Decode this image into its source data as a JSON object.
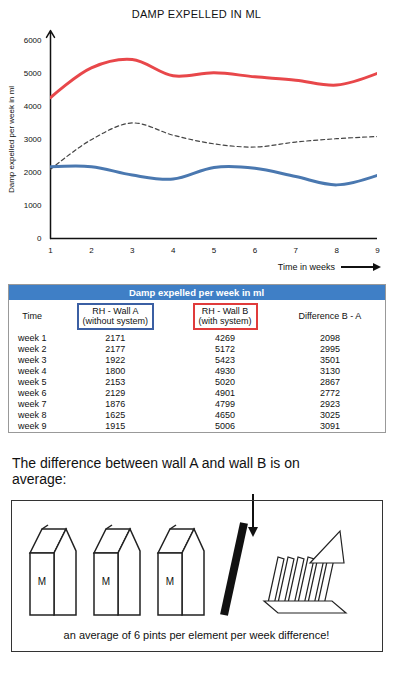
{
  "chart_data": {
    "type": "line",
    "title": "DAMP EXPELLED IN ML",
    "x_label": "Time in weeks",
    "y_label": "Damp expelled per week in ml",
    "x": [
      1,
      2,
      3,
      4,
      5,
      6,
      7,
      8,
      9
    ],
    "series": [
      {
        "color": "#e8474a",
        "line_style": "solid",
        "values": [
          4269,
          5172,
          5423,
          4930,
          5020,
          4901,
          4799,
          4650,
          5006
        ]
      },
      {
        "color": "#444444",
        "line_style": "dashed",
        "values": [
          2098,
          2995,
          3501,
          3130,
          2867,
          2772,
          2923,
          3025,
          3091
        ]
      },
      {
        "color": "#4a78b0",
        "line_style": "solid",
        "values": [
          2171,
          2177,
          1922,
          1800,
          2153,
          2129,
          1876,
          1625,
          1915
        ]
      }
    ],
    "xlim": [
      1,
      9
    ],
    "xticks": [
      1,
      2,
      3,
      4,
      5,
      6,
      7,
      8,
      9
    ],
    "ylim": [
      0,
      6000
    ],
    "yticks": [
      0,
      1000,
      2000,
      3000,
      4000,
      5000,
      6000
    ],
    "grid": false
  },
  "table": {
    "title": "Damp expelled per week in ml",
    "columns": [
      "Time",
      "RH - Wall A\n(without system)",
      "RH - Wall B\n(with system)",
      "Difference B - A"
    ],
    "rows": [
      [
        "week 1",
        2171,
        4269,
        2098
      ],
      [
        "week 2",
        2177,
        5172,
        2995
      ],
      [
        "week 3",
        1922,
        5423,
        3501
      ],
      [
        "week 4",
        1800,
        4930,
        3130
      ],
      [
        "week 5",
        2153,
        5020,
        2867
      ],
      [
        "week 6",
        2129,
        4901,
        2772
      ],
      [
        "week 7",
        1876,
        4799,
        2923
      ],
      [
        "week 8",
        1625,
        4650,
        3025
      ],
      [
        "week 9",
        1915,
        5006,
        3091
      ]
    ]
  },
  "caption": "The difference between wall A and wall B is on average:",
  "icon_labels": [
    "M",
    "M",
    "M"
  ],
  "footer": "an average of 6 pints per element per week difference!"
}
